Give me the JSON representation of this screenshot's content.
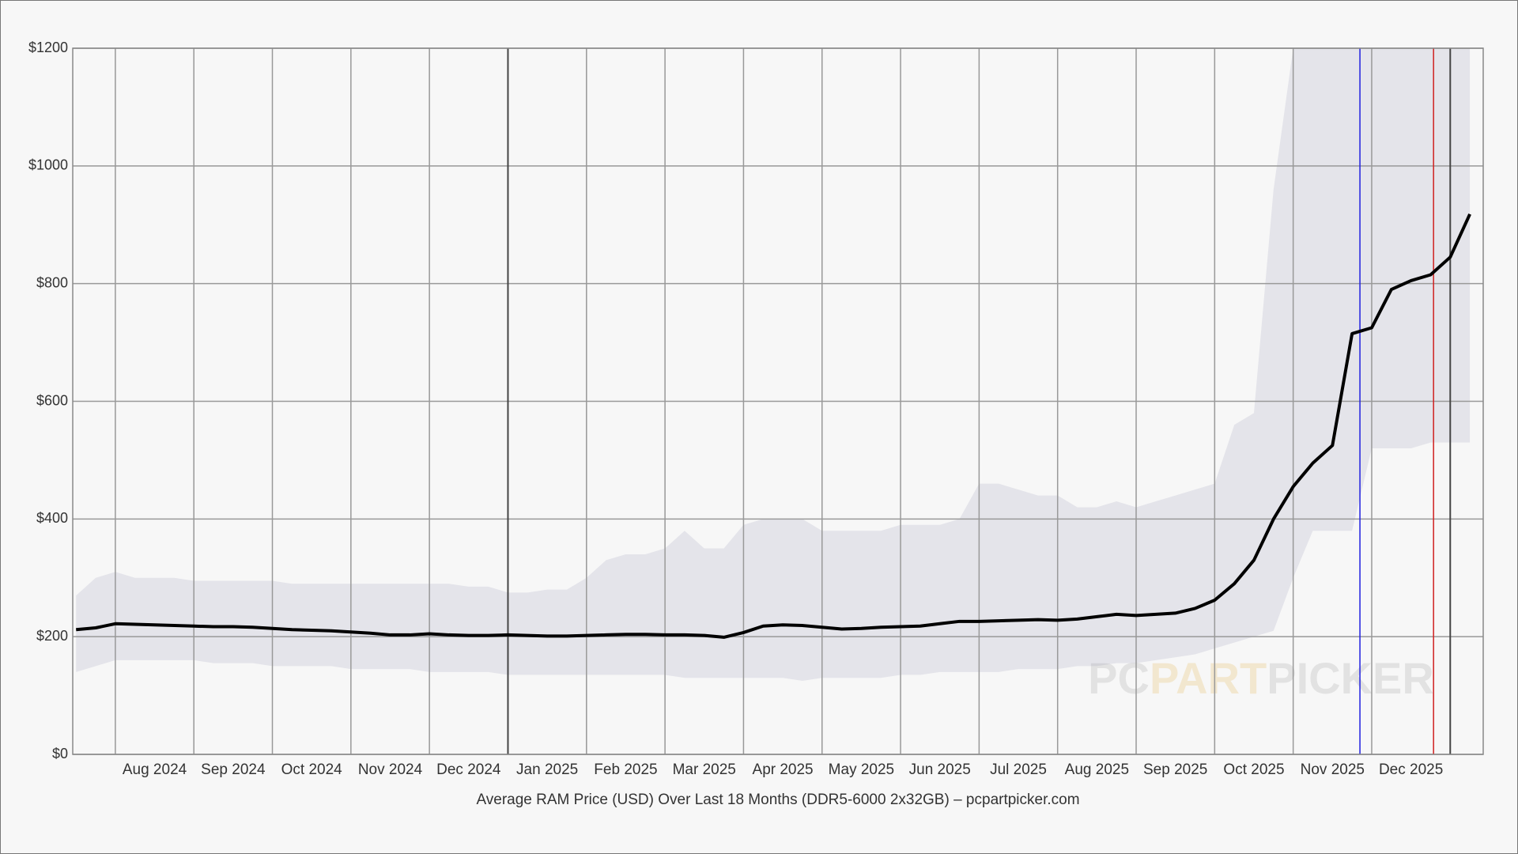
{
  "chart_data": {
    "type": "line",
    "title": "Average RAM Price (USD) Over Last 18 Months (DDR5-6000 2x32GB) – pcpartpicker.com",
    "categories": [
      null,
      null,
      "Aug 2024",
      null,
      null,
      null,
      "Sep 2024",
      null,
      null,
      null,
      "Oct 2024",
      null,
      null,
      null,
      "Nov 2024",
      null,
      null,
      null,
      "Dec 2024",
      null,
      null,
      null,
      "Jan 2025",
      null,
      null,
      null,
      "Feb 2025",
      null,
      null,
      null,
      "Mar 2025",
      null,
      null,
      null,
      "Apr 2025",
      null,
      null,
      null,
      "May 2025",
      null,
      null,
      null,
      "Jun 2025",
      null,
      null,
      null,
      "Jul 2025",
      null,
      null,
      null,
      "Aug 2025",
      null,
      null,
      null,
      "Sep 2025",
      null,
      null,
      null,
      "Oct 2025",
      null,
      null,
      null,
      "Nov 2025",
      null,
      null,
      null,
      "Dec 2025",
      null,
      null,
      null,
      null,
      null
    ],
    "series": [
      {
        "color": "#000000",
        "values": [
          212,
          215,
          222,
          221,
          220,
          219,
          218,
          217,
          217,
          216,
          214,
          212,
          211,
          210,
          208,
          206,
          203,
          203,
          205,
          203,
          202,
          202,
          203,
          202,
          201,
          201,
          202,
          203,
          204,
          204,
          203,
          203,
          202,
          199,
          207,
          218,
          220,
          219,
          216,
          213,
          214,
          216,
          217,
          218,
          222,
          226,
          226,
          227,
          228,
          229,
          228,
          230,
          234,
          238,
          236,
          238,
          240,
          248,
          262,
          290,
          330,
          400,
          455,
          495,
          525,
          715,
          725,
          790,
          805,
          815,
          845,
          918
        ]
      }
    ],
    "band": {
      "color": "#e4e4ea",
      "high": [
        270,
        300,
        310,
        300,
        300,
        300,
        295,
        295,
        295,
        295,
        295,
        290,
        290,
        290,
        290,
        290,
        290,
        290,
        290,
        290,
        285,
        285,
        275,
        275,
        280,
        280,
        300,
        330,
        340,
        340,
        350,
        380,
        350,
        350,
        390,
        400,
        400,
        400,
        380,
        380,
        380,
        380,
        390,
        390,
        390,
        400,
        460,
        460,
        450,
        440,
        440,
        420,
        420,
        430,
        420,
        430,
        440,
        450,
        460,
        560,
        580,
        960,
        1200,
        1200,
        1200,
        1200,
        1200,
        1200,
        1200,
        1200,
        1200,
        1200
      ],
      "low": [
        140,
        150,
        160,
        160,
        160,
        160,
        160,
        155,
        155,
        155,
        150,
        150,
        150,
        150,
        145,
        145,
        145,
        145,
        140,
        140,
        140,
        140,
        135,
        135,
        135,
        135,
        135,
        135,
        135,
        135,
        135,
        130,
        130,
        130,
        130,
        130,
        130,
        125,
        130,
        130,
        130,
        130,
        135,
        135,
        140,
        140,
        140,
        140,
        145,
        145,
        145,
        150,
        150,
        155,
        155,
        160,
        165,
        170,
        180,
        190,
        200,
        210,
        300,
        380,
        380,
        380,
        520,
        520,
        520,
        530,
        530,
        530
      ]
    },
    "ylim": [
      0,
      1200
    ],
    "yticks": [
      {
        "value": 0,
        "label": "$0"
      },
      {
        "value": 200,
        "label": "$200"
      },
      {
        "value": 400,
        "label": "$400"
      },
      {
        "value": 600,
        "label": "$600"
      },
      {
        "value": 800,
        "label": "$800"
      },
      {
        "value": 1000,
        "label": "$1000"
      },
      {
        "value": 1200,
        "label": "$1200"
      }
    ],
    "grid": true,
    "watermark": [
      "PC",
      "PART",
      "PICKER"
    ]
  }
}
